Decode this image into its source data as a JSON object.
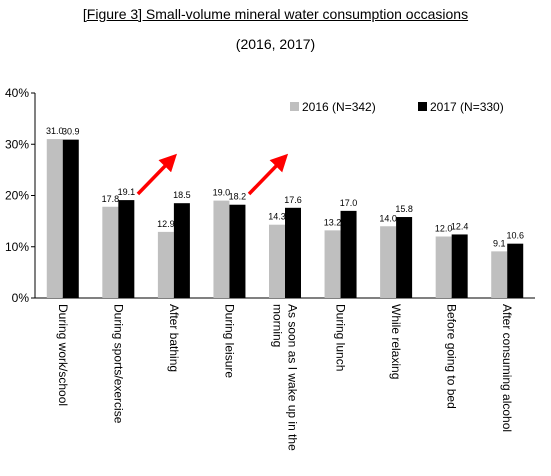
{
  "title": "[Figure 3] Small-volume mineral water consumption occasions",
  "subtitle": "(2016, 2017)",
  "chart_data": {
    "type": "bar",
    "title": "[Figure 3] Small-volume mineral water consumption occasions",
    "subtitle": "(2016, 2017)",
    "categories": [
      "During work/school",
      "During sports/exercise",
      "After bathing",
      "During leisure",
      "As soon as I wake up in the morning",
      "During lunch",
      "While relaxing",
      "Before going to bed",
      "After consuming alcohol"
    ],
    "category_lines": [
      [
        "During work/school"
      ],
      [
        "During sports/exercise"
      ],
      [
        "After bathing"
      ],
      [
        "During leisure"
      ],
      [
        "As soon as I wake up in the",
        "morning"
      ],
      [
        "During lunch"
      ],
      [
        "While relaxing"
      ],
      [
        "Before going to bed"
      ],
      [
        "After consuming alcohol"
      ]
    ],
    "series": [
      {
        "name": "2016 (N=342)",
        "color": "#bfbfbf",
        "values": [
          31.0,
          17.8,
          12.9,
          19.0,
          14.3,
          13.2,
          14.0,
          12.0,
          9.1
        ],
        "labels": [
          "31.0",
          "17.8",
          "12.9",
          "19.0",
          "14.3",
          "13.2",
          "14.0",
          "12.0",
          "9.1"
        ]
      },
      {
        "name": "2017 (N=330)",
        "color": "#000000",
        "values": [
          30.9,
          19.1,
          18.5,
          18.2,
          17.6,
          17.0,
          15.8,
          12.4,
          10.6
        ],
        "labels": [
          "30.9",
          "19.1",
          "18.5",
          "18.2",
          "17.6",
          "17.0",
          "15.8",
          "12.4",
          "10.6"
        ]
      }
    ],
    "ylim": [
      0,
      40
    ],
    "yticks": [
      "0%",
      "10%",
      "20%",
      "30%",
      "40%"
    ],
    "grid": false,
    "legend": "top-right",
    "annotations": [
      {
        "type": "arrow",
        "color": "#ff0000",
        "category": "After bathing"
      },
      {
        "type": "arrow",
        "color": "#ff0000",
        "category": "As soon as I wake up in the morning"
      }
    ]
  }
}
